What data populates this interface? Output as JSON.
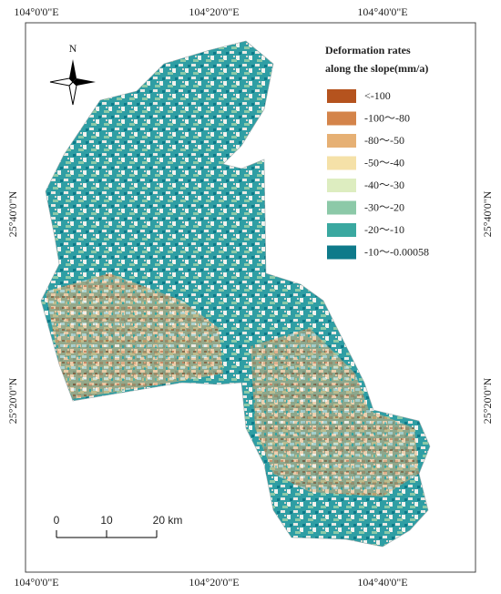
{
  "coordinates": {
    "top": [
      "104°0'0\"E",
      "104°20'0\"E",
      "104°40'0\"E"
    ],
    "bottom": [
      "104°0'0\"E",
      "104°20'0\"E",
      "104°40'0\"E"
    ],
    "left": [
      "25°40'0\"N",
      "25°20'0\"N"
    ],
    "right": [
      "25°40'0\"N",
      "25°20'0\"N"
    ]
  },
  "north_arrow": "N",
  "legend": {
    "title": [
      "Deformation rates",
      "along the slope(mm/a)"
    ],
    "items": [
      {
        "label": "<-100",
        "color": "#b5531e"
      },
      {
        "label": "-100～-80",
        "color": "#d4844a"
      },
      {
        "label": "-80～-50",
        "color": "#e6b074"
      },
      {
        "label": "-50～-40",
        "color": "#f5e1a8"
      },
      {
        "label": "-40～-30",
        "color": "#ddedc0"
      },
      {
        "label": "-30～-20",
        "color": "#8cc9a8"
      },
      {
        "label": "-20～-10",
        "color": "#3aa8a0"
      },
      {
        "label": "-10～-0.00058",
        "color": "#0e7a8a"
      }
    ]
  },
  "scale_bar": [
    "0",
    "10",
    "20 km"
  ]
}
